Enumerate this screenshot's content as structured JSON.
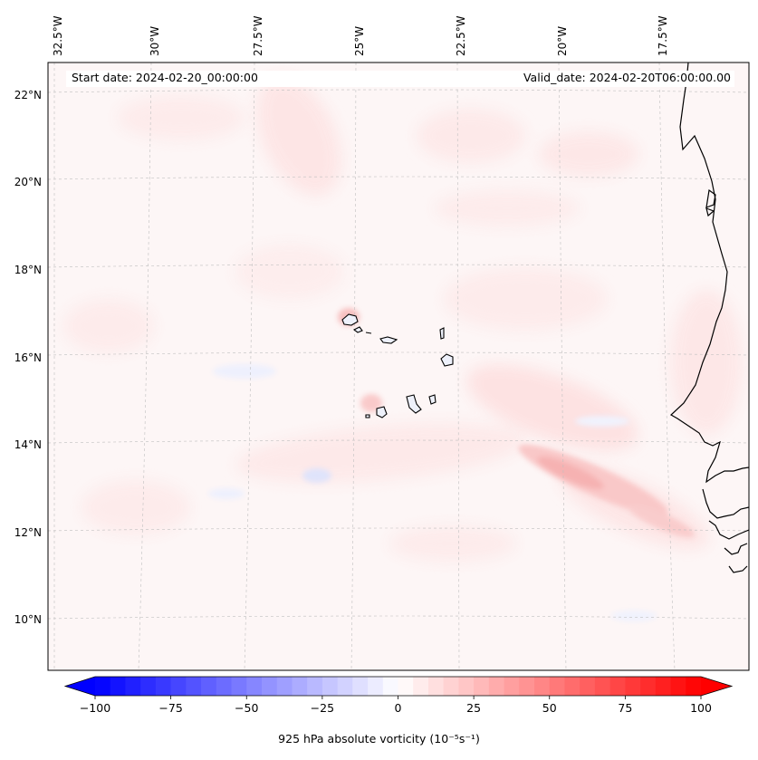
{
  "map": {
    "start_date": "Start date: 2024-02-20_00:00:00",
    "valid_date": "Valid_date: 2024-02-20T06:00:00.00",
    "lon_labels": [
      "32.5°W",
      "30°W",
      "27.5°W",
      "25°W",
      "22.5°W",
      "20°W",
      "17.5°W"
    ],
    "lat_labels": [
      "22°N",
      "20°N",
      "18°N",
      "16°N",
      "14°N",
      "12°N",
      "10°N"
    ],
    "field": "925 hPa absolute vorticity"
  },
  "colorbar": {
    "ticks": [
      "−100",
      "−75",
      "−50",
      "−25",
      "0",
      "25",
      "50",
      "75",
      "100"
    ],
    "label": "925 hPa absolute vorticity (10⁻⁵s⁻¹)",
    "min": -100,
    "max": 100,
    "step": 5,
    "colors": {
      "neg": "#0000ff",
      "mid": "#ffffff",
      "pos": "#ff0000"
    }
  }
}
